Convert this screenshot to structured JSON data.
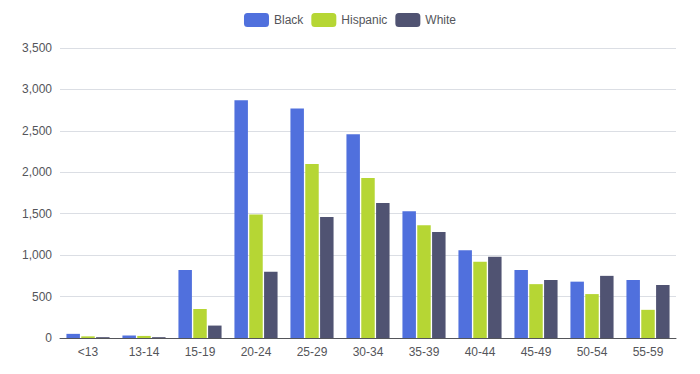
{
  "chart_data": {
    "type": "bar",
    "categories": [
      "<13",
      "13-14",
      "15-19",
      "20-24",
      "25-29",
      "30-34",
      "35-39",
      "40-44",
      "45-49",
      "50-54",
      "55-59"
    ],
    "series": [
      {
        "name": "Black",
        "values": [
          50,
          30,
          820,
          2870,
          2770,
          2460,
          1530,
          1060,
          820,
          680,
          700
        ]
      },
      {
        "name": "Hispanic",
        "values": [
          20,
          25,
          350,
          1490,
          2100,
          1930,
          1360,
          920,
          650,
          530,
          340
        ]
      },
      {
        "name": "White",
        "values": [
          10,
          10,
          150,
          800,
          1460,
          1630,
          1280,
          980,
          700,
          750,
          640
        ]
      }
    ],
    "ylim": [
      0,
      3500
    ],
    "yticks": [
      0,
      500,
      1000,
      1500,
      2000,
      2500,
      3000,
      3500
    ],
    "grid": true,
    "legend": "top"
  }
}
